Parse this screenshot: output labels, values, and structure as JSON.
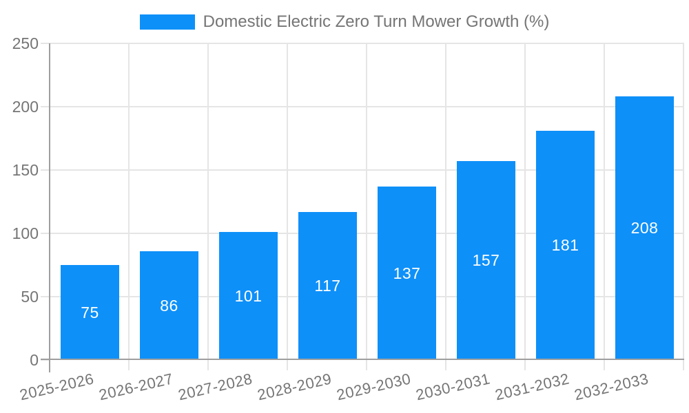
{
  "legend": {
    "label": "Domestic Electric Zero Turn Mower Growth (%)"
  },
  "chart_data": {
    "type": "bar",
    "title": "Domestic Electric Zero Turn Mower Growth (%)",
    "categories": [
      "2025-2026",
      "2026-2027",
      "2027-2028",
      "2028-2029",
      "2029-2030",
      "2030-2031",
      "2031-2032",
      "2032-2033"
    ],
    "values": [
      75,
      86,
      101,
      117,
      137,
      157,
      181,
      208
    ],
    "xlabel": "",
    "ylabel": "",
    "ylim": [
      0,
      250
    ],
    "yticks": [
      0,
      50,
      100,
      150,
      200,
      250
    ],
    "grid": "on",
    "legend_position": "top-center",
    "value_labels": "inside-center",
    "x_label_rotation_deg": -13,
    "colors": {
      "bar": "#0e90f9",
      "grid": "#e5e5e5",
      "axis": "#9e9e9e",
      "label_text": "#757575",
      "value_text": "#ffffff",
      "background": "#ffffff"
    }
  }
}
